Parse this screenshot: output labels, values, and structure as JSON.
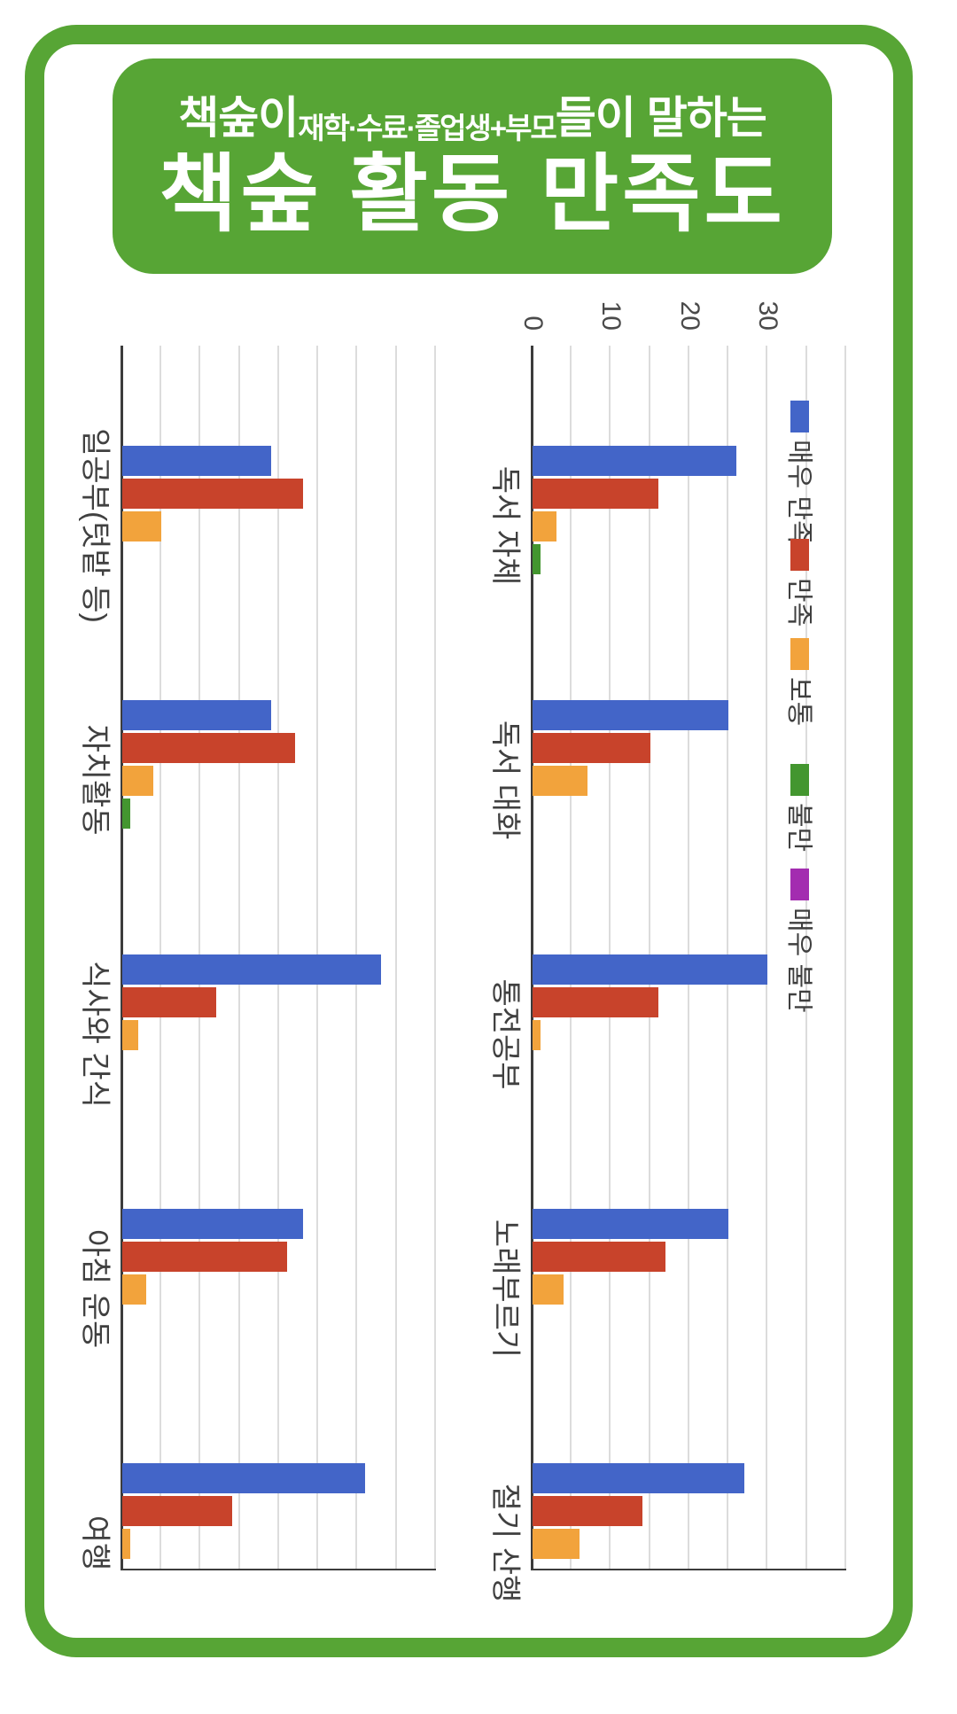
{
  "colors": {
    "frame_green": "#57A535",
    "title_box_green": "#57A535",
    "title_text": "#FFFFFF",
    "gridline": "#DCDCDC",
    "axis_line": "#3C3C3C",
    "label_text": "#404040",
    "series": {
      "very_satisfied": "#4365C8",
      "satisfied": "#C8432B",
      "neutral": "#F2A33C",
      "dissatisfied": "#43962F",
      "very_dissatisfied": "#A32CB0"
    }
  },
  "title": {
    "prefix_large": "책숲이",
    "prefix_small": "재학·수료·졸업생+부모",
    "suffix_large": "들이 말하는",
    "main": "책숲 활동 만족도"
  },
  "legend": {
    "position": "right-of-second-chart",
    "items": [
      {
        "label": "매우 만족",
        "color": "#4365C8"
      },
      {
        "label": "만족",
        "color": "#C8432B"
      },
      {
        "label": "보통",
        "color": "#F2A33C"
      },
      {
        "label": "불만",
        "color": "#43962F"
      },
      {
        "label": "매우 불만",
        "color": "#A32CB0"
      }
    ]
  },
  "chart_data": [
    {
      "type": "bar",
      "title": "",
      "orientation": "grouped bars, chart rotated 90deg clockwise (bars run left-to-right, category labels vertical)",
      "categories": [
        "일공부(텃밭 등)",
        "자치활동",
        "식사와 간식",
        "아침 운동",
        "여행"
      ],
      "series": [
        {
          "name": "매우 만족",
          "color": "#4365C8",
          "values": [
            19,
            19,
            33,
            23,
            31
          ]
        },
        {
          "name": "만족",
          "color": "#C8432B",
          "values": [
            23,
            22,
            12,
            21,
            14
          ]
        },
        {
          "name": "보통",
          "color": "#F2A33C",
          "values": [
            5,
            4,
            2,
            3,
            1
          ]
        },
        {
          "name": "불만",
          "color": "#43962F",
          "values": [
            0,
            1,
            0,
            0,
            0
          ]
        },
        {
          "name": "매우 불만",
          "color": "#A32CB0",
          "values": [
            0,
            0,
            0,
            0,
            0
          ]
        }
      ],
      "value_axis": {
        "min": 0,
        "max": 40,
        "gridlines_every": 5,
        "tick_labels_shown": []
      },
      "grid": true,
      "legend_visible": false
    },
    {
      "type": "bar",
      "title": "",
      "orientation": "grouped bars, chart rotated 90deg clockwise (bars run left-to-right, category labels vertical)",
      "categories": [
        "독서 자체",
        "독서 대화",
        "통전공부",
        "노래부르기",
        "절기 산행"
      ],
      "series": [
        {
          "name": "매우 만족",
          "color": "#4365C8",
          "values": [
            26,
            25,
            30,
            25,
            27
          ]
        },
        {
          "name": "만족",
          "color": "#C8432B",
          "values": [
            16,
            15,
            16,
            17,
            14
          ]
        },
        {
          "name": "보통",
          "color": "#F2A33C",
          "values": [
            3,
            7,
            1,
            4,
            6
          ]
        },
        {
          "name": "불만",
          "color": "#43962F",
          "values": [
            1,
            0,
            0,
            0,
            0
          ]
        },
        {
          "name": "매우 불만",
          "color": "#A32CB0",
          "values": [
            0,
            0,
            0,
            0,
            0
          ]
        }
      ],
      "value_axis": {
        "min": 0,
        "max": 40,
        "gridlines_every": 5,
        "tick_labels_shown": [
          0,
          10,
          20,
          30
        ]
      },
      "grid": true,
      "legend_visible": true
    }
  ]
}
